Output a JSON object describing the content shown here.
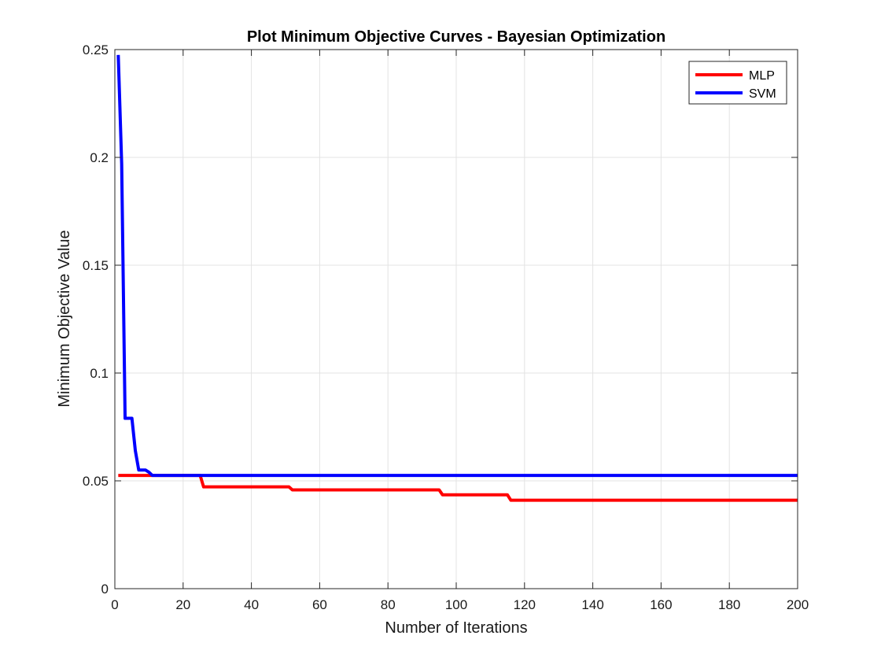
{
  "chart_data": {
    "type": "line",
    "title": "Plot Minimum Objective Curves - Bayesian Optimization",
    "xlabel": "Number of Iterations",
    "ylabel": "Minimum Objective Value",
    "xlim": [
      0,
      200
    ],
    "ylim": [
      0,
      0.25
    ],
    "xticks": [
      0,
      20,
      40,
      60,
      80,
      100,
      120,
      140,
      160,
      180,
      200
    ],
    "xtick_labels": [
      "0",
      "20",
      "40",
      "60",
      "80",
      "100",
      "120",
      "140",
      "160",
      "180",
      "200"
    ],
    "yticks": [
      0,
      0.05,
      0.1,
      0.15,
      0.2,
      0.25
    ],
    "ytick_labels": [
      "0",
      "0.05",
      "0.1",
      "0.15",
      "0.2",
      "0.25"
    ],
    "grid": true,
    "legend_position": "top-right",
    "series": [
      {
        "name": "MLP",
        "color": "#ff0000",
        "x": [
          1,
          25,
          26,
          51,
          52,
          95,
          96,
          115,
          116,
          200
        ],
        "y": [
          0.0525,
          0.0525,
          0.0472,
          0.0472,
          0.0458,
          0.0458,
          0.0435,
          0.0435,
          0.041,
          0.041
        ]
      },
      {
        "name": "SVM",
        "color": "#0000ff",
        "x": [
          1,
          2,
          3,
          4,
          5,
          6,
          7,
          8,
          9,
          10,
          11,
          200
        ],
        "y": [
          0.2475,
          0.197,
          0.079,
          0.079,
          0.079,
          0.064,
          0.055,
          0.055,
          0.055,
          0.054,
          0.0525,
          0.0525
        ]
      }
    ]
  }
}
